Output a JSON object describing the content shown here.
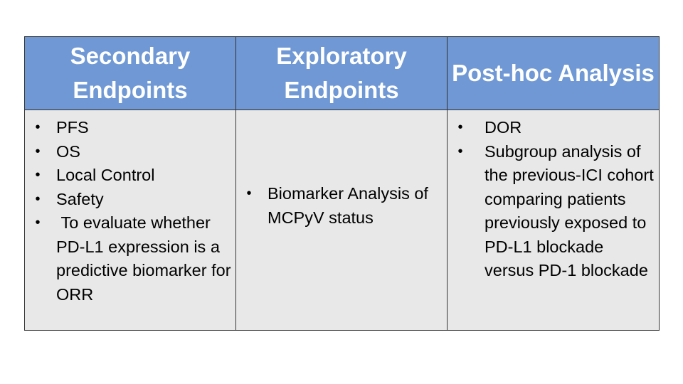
{
  "table": {
    "columns": [
      {
        "header": "Secondary Endpoints",
        "items": [
          "PFS",
          "OS",
          "Local Control",
          "Safety",
          " To evaluate whether PD-L1 expression is a predictive biomarker for ORR"
        ]
      },
      {
        "header": "Exploratory Endpoints",
        "items": [
          "Biomarker Analysis of MCPyV status"
        ]
      },
      {
        "header": "Post-hoc Analysis",
        "items": [
          "DOR",
          "Subgroup analysis of the previous-ICI cohort comparing patients previously exposed to PD-L1 blockade versus PD-1 blockade"
        ]
      }
    ],
    "bullet_glyph": "•",
    "colors": {
      "header_bg": "#6f98d4",
      "header_text": "#ffffff",
      "cell_bg": "#e8e8e8",
      "border": "#333333"
    }
  }
}
